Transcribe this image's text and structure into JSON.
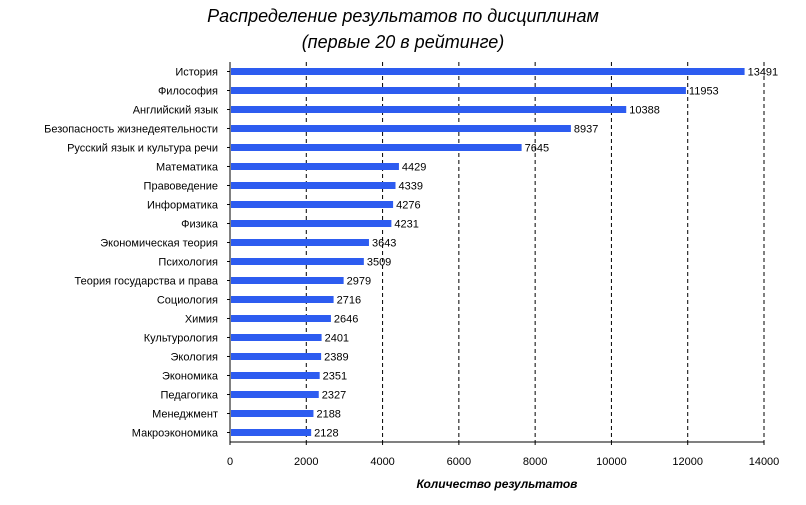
{
  "chart_data": {
    "type": "bar",
    "orientation": "horizontal",
    "title_line1": "Распределение результатов по дисциплинам",
    "title_line2": "(первые 20 в рейтинге)",
    "xlabel": "Количество результатов",
    "ylabel": "",
    "xlim": [
      0,
      14000
    ],
    "xticks": [
      0,
      2000,
      4000,
      6000,
      8000,
      10000,
      12000,
      14000
    ],
    "grid": "vertical dashed",
    "bar_color": "#2d5cf0",
    "categories": [
      "История",
      "Философия",
      "Английский язык",
      "Безопасность жизнедеятельности",
      "Русский язык и культура речи",
      "Математика",
      "Правоведение",
      "Информатика",
      "Физика",
      "Экономическая теория",
      "Психология",
      "Теория государства и права",
      "Социология",
      "Химия",
      "Культурология",
      "Экология",
      "Экономика",
      "Педагогика",
      "Менеджмент",
      "Макроэкономика"
    ],
    "values": [
      13491,
      11953,
      10388,
      8937,
      7645,
      4429,
      4339,
      4276,
      4231,
      3643,
      3509,
      2979,
      2716,
      2646,
      2401,
      2389,
      2351,
      2327,
      2188,
      2128
    ]
  }
}
